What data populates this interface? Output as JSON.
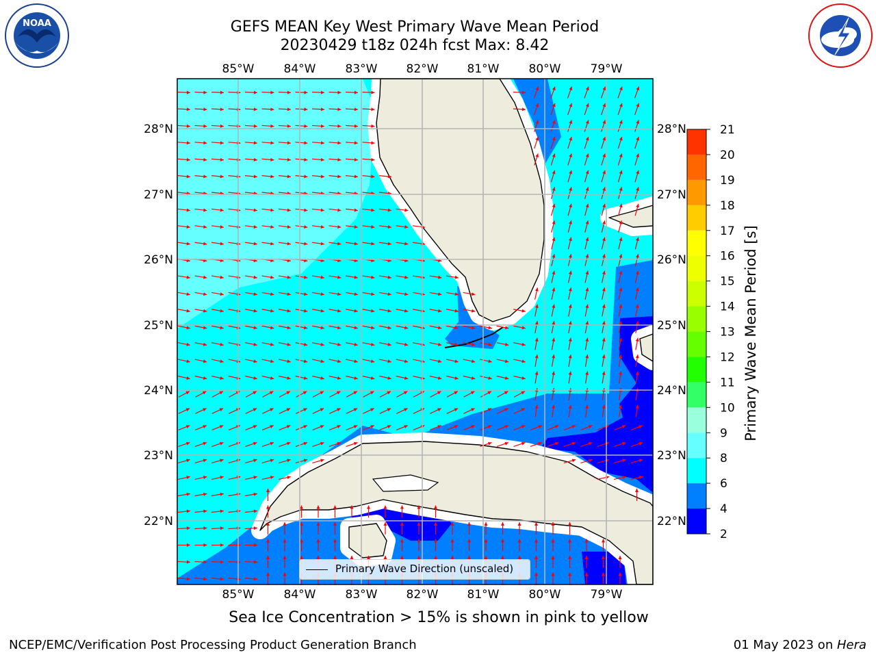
{
  "header": {
    "title_line1": "GEFS MEAN Key West Primary Wave Mean Period",
    "title_line2": "20230429 t18z 024h fcst   Max: 8.42"
  },
  "logos": {
    "noaa_text": "NOAA",
    "noaa_ring": "NATIONAL OCEANIC AND ATMOSPHERIC ADMINISTRATION · U.S. DEPARTMENT OF COMMERCE",
    "nws_ring": "NATIONAL WEATHER SERVICE"
  },
  "map": {
    "lon_labels": [
      "85°W",
      "84°W",
      "83°W",
      "82°W",
      "81°W",
      "80°W",
      "79°W"
    ],
    "lat_labels": [
      "28°N",
      "27°N",
      "26°N",
      "25°N",
      "24°N",
      "23°N",
      "22°N"
    ],
    "colors": {
      "land": "#eeecdc",
      "coast": "#000000",
      "grid": "#b4b4b4",
      "arrow": "#ff0000",
      "ice_mask": "#ffffff"
    }
  },
  "colorbar": {
    "title": "Primary Wave Mean Period [s]",
    "tick_labels": [
      "2",
      "4",
      "6",
      "8",
      "9",
      "10",
      "11",
      "12",
      "13",
      "14",
      "15",
      "16",
      "17",
      "18",
      "19",
      "20",
      "21"
    ],
    "colors": [
      "#0000ff",
      "#0080ff",
      "#00ffff",
      "#66ffff",
      "#99ffdd",
      "#33ff66",
      "#22ff00",
      "#66ff00",
      "#99ff00",
      "#ccff00",
      "#eeff00",
      "#ffff00",
      "#ffcc00",
      "#ff9900",
      "#ff6600",
      "#ff3300",
      "#ff0000"
    ]
  },
  "legend": {
    "label": "Primary Wave Direction (unscaled)"
  },
  "notes": {
    "ice": "Sea Ice Concentration > 15% is shown in pink to yellow"
  },
  "footer": {
    "left": "NCEP/EMC/Verification Post Processing Product Generation Branch",
    "right_date": "01 May 2023 on ",
    "right_host": "Hera"
  }
}
